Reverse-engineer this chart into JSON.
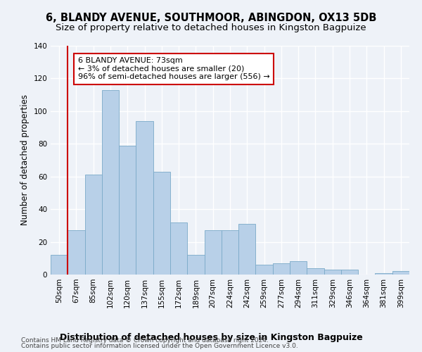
{
  "title": "6, BLANDY AVENUE, SOUTHMOOR, ABINGDON, OX13 5DB",
  "subtitle": "Size of property relative to detached houses in Kingston Bagpuize",
  "xlabel": "Distribution of detached houses by size in Kingston Bagpuize",
  "ylabel": "Number of detached properties",
  "footer_line1": "Contains HM Land Registry data © Crown copyright and database right 2024.",
  "footer_line2": "Contains public sector information licensed under the Open Government Licence v3.0.",
  "categories": [
    "50sqm",
    "67sqm",
    "85sqm",
    "102sqm",
    "120sqm",
    "137sqm",
    "155sqm",
    "172sqm",
    "189sqm",
    "207sqm",
    "224sqm",
    "242sqm",
    "259sqm",
    "277sqm",
    "294sqm",
    "311sqm",
    "329sqm",
    "346sqm",
    "364sqm",
    "381sqm",
    "399sqm"
  ],
  "values": [
    12,
    27,
    61,
    113,
    79,
    94,
    63,
    32,
    12,
    27,
    27,
    31,
    6,
    7,
    8,
    4,
    3,
    3,
    0,
    1,
    2
  ],
  "bar_color": "#b8d0e8",
  "bar_edge_color": "#7aaac8",
  "vline_color": "#cc0000",
  "annotation_text_line1": "6 BLANDY AVENUE: 73sqm",
  "annotation_text_line2": "← 3% of detached houses are smaller (20)",
  "annotation_text_line3": "96% of semi-detached houses are larger (556) →",
  "ylim": [
    0,
    140
  ],
  "yticks": [
    0,
    20,
    40,
    60,
    80,
    100,
    120,
    140
  ],
  "bg_color": "#eef2f8",
  "grid_color": "#ffffff",
  "title_fontsize": 10.5,
  "subtitle_fontsize": 9.5,
  "xlabel_fontsize": 9,
  "ylabel_fontsize": 8.5,
  "tick_fontsize": 7.5,
  "footer_fontsize": 6.5,
  "annotation_fontsize": 8
}
